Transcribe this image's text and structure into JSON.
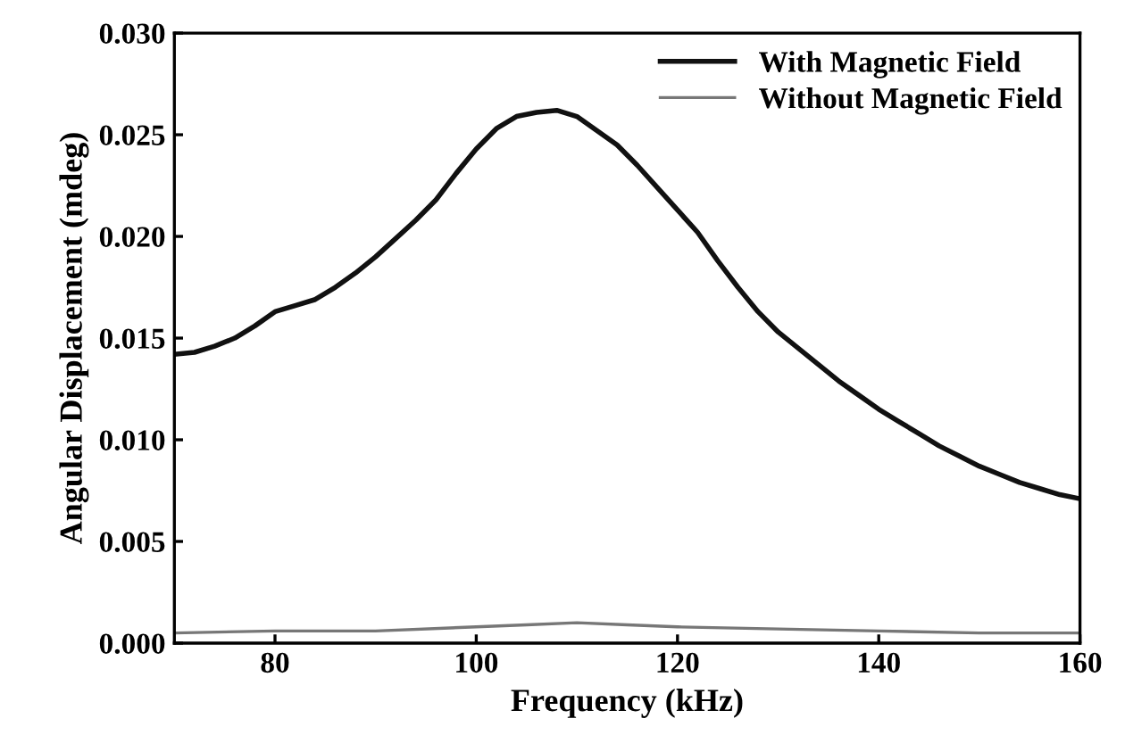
{
  "chart_data": {
    "type": "line",
    "xlabel": "Frequency (kHz)",
    "ylabel": "Angular Displacement (mdeg)",
    "xlim": [
      70,
      160
    ],
    "xticks": [
      80,
      100,
      120,
      140,
      160
    ],
    "ylim": [
      0,
      0.03
    ],
    "yticks": [
      {
        "value": 0,
        "label": "0.000"
      },
      {
        "value": 0.005,
        "label": "0.005"
      },
      {
        "value": 0.01,
        "label": "0.010"
      },
      {
        "value": 0.015,
        "label": "0.015"
      },
      {
        "value": 0.02,
        "label": "0.020"
      },
      {
        "value": 0.025,
        "label": "0.025"
      },
      {
        "value": 0.03,
        "label": "0.030"
      }
    ],
    "grid": false,
    "legend": "top right",
    "series": [
      {
        "name": "With Magnetic Field",
        "color": "#111111",
        "x": [
          70,
          72,
          74,
          76,
          78,
          80,
          82,
          84,
          86,
          88,
          90,
          92,
          94,
          96,
          98,
          100,
          102,
          104,
          106,
          108,
          110,
          112,
          114,
          116,
          118,
          120,
          122,
          124,
          126,
          128,
          130,
          132,
          134,
          136,
          138,
          140,
          142,
          144,
          146,
          148,
          150,
          152,
          154,
          156,
          158,
          160
        ],
        "values": [
          0.0142,
          0.0143,
          0.0146,
          0.015,
          0.0156,
          0.0163,
          0.0166,
          0.0169,
          0.0175,
          0.0182,
          0.019,
          0.0199,
          0.0208,
          0.0218,
          0.0231,
          0.0243,
          0.0253,
          0.0259,
          0.0261,
          0.0262,
          0.0259,
          0.0252,
          0.0245,
          0.0235,
          0.0224,
          0.0213,
          0.0202,
          0.0188,
          0.0175,
          0.0163,
          0.0153,
          0.0145,
          0.0137,
          0.0129,
          0.0122,
          0.0115,
          0.0109,
          0.0103,
          0.0097,
          0.0092,
          0.0087,
          0.0083,
          0.0079,
          0.0076,
          0.0073,
          0.0071
        ]
      },
      {
        "name": "Without Magnetic Field",
        "color": "#777777",
        "x": [
          70,
          80,
          90,
          100,
          105,
          110,
          115,
          120,
          130,
          140,
          150,
          160
        ],
        "values": [
          0.0005,
          0.0006,
          0.0006,
          0.0008,
          0.0009,
          0.001,
          0.0009,
          0.0008,
          0.0007,
          0.0006,
          0.0005,
          0.0005
        ]
      }
    ]
  }
}
